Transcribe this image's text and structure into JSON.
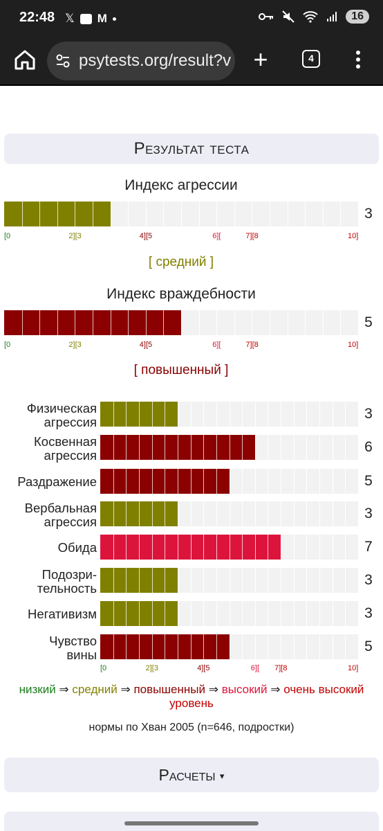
{
  "statusbar": {
    "time": "22:48",
    "left_icons": [
      "x-icon",
      "notes-icon",
      "gmail-icon",
      "dot-icon"
    ],
    "battery": "16"
  },
  "browser": {
    "url": "psytests.org/result?v",
    "tab_count": "4"
  },
  "colors": {
    "low": "#1b7c1b",
    "medium": "#808000",
    "elevated": "#8b0000",
    "high": "#dc143c",
    "very_high": "#c00000",
    "track": "#f2f2f2"
  },
  "page": {
    "header": "Результат теста",
    "aggression": {
      "title": "Индекс агрессии",
      "value": "3",
      "level": "[ средний ]",
      "level_key": "medium"
    },
    "hostility": {
      "title": "Индекс враждебности",
      "value": "5",
      "level": "[ повышенный ]",
      "level_key": "elevated"
    },
    "scale_marks": [
      {
        "text": "[0",
        "key": "low",
        "at": 0
      },
      {
        "text": "2][3",
        "key": "medium",
        "at": 2
      },
      {
        "text": "4][5",
        "key": "elevated",
        "at": 4
      },
      {
        "text": "6][",
        "key": "high",
        "at": 6
      },
      {
        "text": "7][8",
        "key": "very_high",
        "at": 7
      },
      {
        "text": "10]",
        "key": "very_high",
        "at": 10
      }
    ],
    "scales": [
      {
        "label": "Физическая агрессия",
        "value": "3",
        "level_key": "medium"
      },
      {
        "label": "Косвенная агрессия",
        "value": "6",
        "level_key": "elevated"
      },
      {
        "label": "Раздражение",
        "value": "5",
        "level_key": "elevated"
      },
      {
        "label": "Вербальная агрессия",
        "value": "3",
        "level_key": "medium"
      },
      {
        "label": "Обида",
        "value": "7",
        "level_key": "high"
      },
      {
        "label": "Подозри-тельность",
        "value": "3",
        "level_key": "medium"
      },
      {
        "label": "Негативизм",
        "value": "3",
        "level_key": "medium"
      },
      {
        "label": "Чувство вины",
        "value": "5",
        "level_key": "elevated"
      }
    ],
    "legend": {
      "low": "низкий",
      "medium": "средний",
      "elevated": "повышенный",
      "high": "высокий",
      "very_high": "очень высокий уровень",
      "arrow": "⇒"
    },
    "norms": "нормы по Хван 2005 (n=646, подростки)",
    "calc_label": "Расчеты",
    "calc_arrow": "▾"
  }
}
